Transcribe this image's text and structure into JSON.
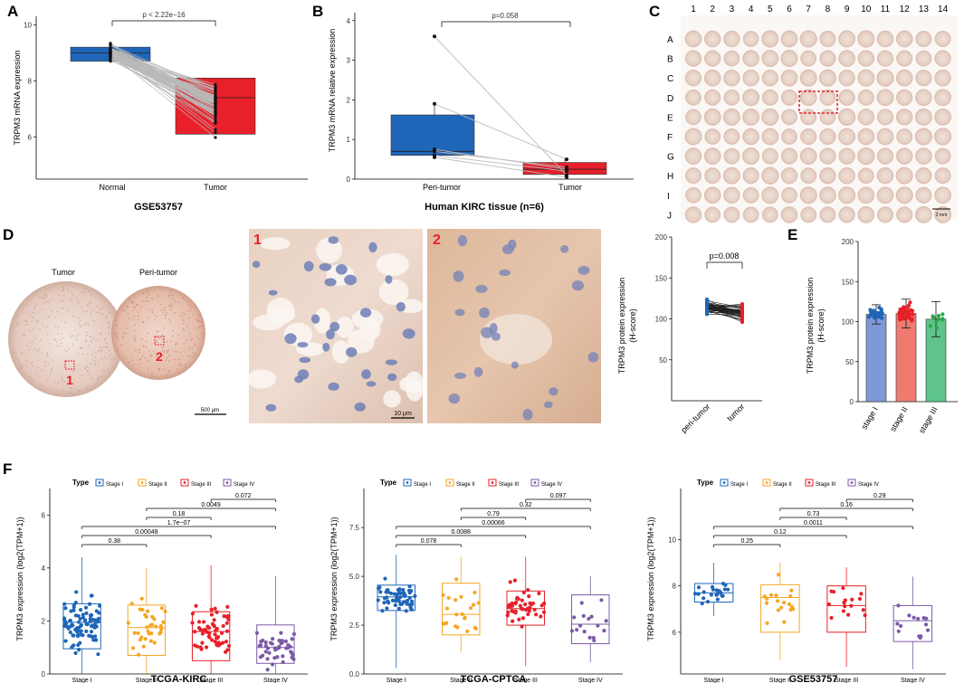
{
  "colors": {
    "blue": "#1f66b8",
    "red": "#e8202a",
    "orange": "#f5a623",
    "purple": "#7b5aa6",
    "green": "#2aa84a",
    "lightblue": "#7e98d8",
    "lightred": "#ee7a70",
    "lightgreen": "#5ec48a"
  },
  "panelA": {
    "letter": "A",
    "ylabel": "TRPM3 mRNA expression",
    "title": "GSE53757",
    "pval": "p < 2.22e−16",
    "xticks": [
      "Normal",
      "Tumor"
    ],
    "yticks": [
      "6",
      "8",
      "10"
    ]
  },
  "panelB": {
    "letter": "B",
    "ylabel": "TRPM3 mRNA relative expression",
    "title": "Human KIRC tissue (n=6)",
    "pval": "p=0.058",
    "xticks": [
      "Peri-tumor",
      "Tumor"
    ],
    "yticks": [
      "0",
      "1",
      "2",
      "3",
      "4"
    ]
  },
  "panelC": {
    "letter": "C",
    "cols": [
      "1",
      "2",
      "3",
      "4",
      "5",
      "6",
      "7",
      "8",
      "9",
      "10",
      "11",
      "12",
      "13",
      "14"
    ],
    "rows": [
      "A",
      "B",
      "C",
      "D",
      "E",
      "F",
      "G",
      "H",
      "I",
      "J"
    ],
    "scale": "2 mm"
  },
  "panelD": {
    "letter": "D",
    "label_tumor": "Tumor",
    "label_peri": "Peri-tumor",
    "mark1": "1",
    "mark2": "2",
    "scale1": "500 μm",
    "scale2": "10 μm",
    "ylabel1": "TRPM3 protein expression",
    "ylabel2": "(H-score)",
    "pval": "p=0.008",
    "yticks": [
      "50",
      "100",
      "150",
      "200"
    ],
    "xticks": [
      "peri-tumor",
      "tumor"
    ]
  },
  "panelE": {
    "letter": "E",
    "ylabel1": "TRPM3 protein expression",
    "ylabel2": "(H-score)",
    "yticks": [
      "0",
      "50",
      "100",
      "150",
      "200"
    ],
    "xticks": [
      "stage I",
      "stage II",
      "stage III"
    ]
  },
  "panelF": {
    "letter": "F",
    "ylabel": "TRPM3 expression (log2(TPM+1))",
    "legend_title": "Type",
    "legend": [
      "Stage I",
      "Stage II",
      "Stage III",
      "Stage IV"
    ],
    "xticks": [
      "Stage I",
      "Stage II",
      "Stage III",
      "Stage IV"
    ]
  },
  "chart_data": [
    {
      "id": "A",
      "type": "box",
      "title": "GSE53757",
      "categories": [
        "Normal",
        "Tumor"
      ],
      "ylim": [
        4.5,
        10.3
      ],
      "box": [
        {
          "q1": 8.7,
          "median": 9.0,
          "q3": 9.2
        },
        {
          "q1": 6.1,
          "median": 7.4,
          "q3": 8.1
        }
      ],
      "annotation": "p < 2.22e−16"
    },
    {
      "id": "B",
      "type": "box",
      "title": "Human KIRC tissue (n=6)",
      "categories": [
        "Peri-tumor",
        "Tumor"
      ],
      "ylim": [
        0,
        4.2
      ],
      "box": [
        {
          "q1": 0.6,
          "median": 0.7,
          "q3": 1.62,
          "min": 0.55,
          "max": 1.9,
          "outlier": 3.6
        },
        {
          "q1": 0.12,
          "median": 0.25,
          "q3": 0.42,
          "min": 0.05,
          "max": 0.5
        }
      ],
      "paired": [
        [
          3.6,
          0.1
        ],
        [
          1.9,
          0.5
        ],
        [
          0.75,
          0.25
        ],
        [
          0.7,
          0.3
        ],
        [
          0.6,
          0.2
        ],
        [
          0.55,
          0.05
        ]
      ],
      "annotation": "p=0.058"
    },
    {
      "id": "D",
      "type": "scatter",
      "categories": [
        "peri-tumor",
        "tumor"
      ],
      "ylim": [
        0,
        200
      ],
      "range": [
        [
          80,
          140
        ],
        [
          60,
          140
        ]
      ],
      "annotation": "p=0.008"
    },
    {
      "id": "E",
      "type": "bar",
      "categories": [
        "stage I",
        "stage II",
        "stage III"
      ],
      "values": [
        109,
        110,
        103
      ],
      "errors": [
        12,
        18,
        22
      ],
      "ylim": [
        0,
        200
      ]
    },
    {
      "id": "F1",
      "type": "box",
      "title": "TCGA-KIRC",
      "categories": [
        "Stage I",
        "Stage II",
        "Stage III",
        "Stage IV"
      ],
      "ylim": [
        0,
        7
      ],
      "yticks": [
        "0",
        "2",
        "4",
        "6"
      ],
      "box": [
        {
          "q1": 0.95,
          "median": 1.95,
          "q3": 2.65,
          "min": 0,
          "max": 4.4,
          "n": 90
        },
        {
          "q1": 0.7,
          "median": 1.75,
          "q3": 2.6,
          "min": 0,
          "max": 4.0,
          "n": 34
        },
        {
          "q1": 0.5,
          "median": 1.6,
          "q3": 2.35,
          "min": 0,
          "max": 4.1,
          "n": 60
        },
        {
          "q1": 0.4,
          "median": 1.0,
          "q3": 1.85,
          "min": 0,
          "max": 3.7,
          "n": 44
        }
      ],
      "comparisons": [
        "0.38",
        "0.00048",
        "1.7e−07",
        "0.18",
        "0.0049",
        "0.072"
      ]
    },
    {
      "id": "F2",
      "type": "box",
      "title": "TCGA-CPTCA",
      "categories": [
        "Stage I",
        "Stage II",
        "Stage III",
        "Stage IV"
      ],
      "ylim": [
        0,
        9.5
      ],
      "yticks": [
        "0.0",
        "2.5",
        "5.0",
        "7.5"
      ],
      "box": [
        {
          "q1": 3.25,
          "median": 3.95,
          "q3": 4.55,
          "min": 0.3,
          "max": 6.1,
          "n": 60
        },
        {
          "q1": 2.0,
          "median": 3.05,
          "q3": 4.65,
          "min": 1.1,
          "max": 6.0,
          "n": 22
        },
        {
          "q1": 2.5,
          "median": 3.35,
          "q3": 4.25,
          "min": 0.4,
          "max": 6.0,
          "n": 45
        },
        {
          "q1": 1.55,
          "median": 2.55,
          "q3": 4.05,
          "min": 0.6,
          "max": 5.0,
          "n": 16
        }
      ],
      "comparisons": [
        "0.078",
        "0.0088",
        "0.00066",
        "0.79",
        "0.32",
        "0.097"
      ]
    },
    {
      "id": "F3",
      "type": "box",
      "title": "GSE53757",
      "categories": [
        "Stage I",
        "Stage II",
        "Stage III",
        "Stage IV"
      ],
      "ylim": [
        4.2,
        12.2
      ],
      "yticks": [
        "6",
        "8",
        "10"
      ],
      "box": [
        {
          "q1": 7.3,
          "median": 7.7,
          "q3": 8.1,
          "min": 6.7,
          "max": 9.0,
          "n": 24
        },
        {
          "q1": 6.0,
          "median": 7.5,
          "q3": 8.05,
          "min": 4.8,
          "max": 9.0,
          "n": 18
        },
        {
          "q1": 6.0,
          "median": 7.15,
          "q3": 8.0,
          "min": 4.5,
          "max": 8.8,
          "n": 16
        },
        {
          "q1": 5.6,
          "median": 6.5,
          "q3": 7.15,
          "min": 4.4,
          "max": 8.4,
          "n": 14
        }
      ],
      "comparisons": [
        "0.25",
        "0.12",
        "0.0011",
        "0.73",
        "0.16",
        "0.29"
      ]
    }
  ]
}
